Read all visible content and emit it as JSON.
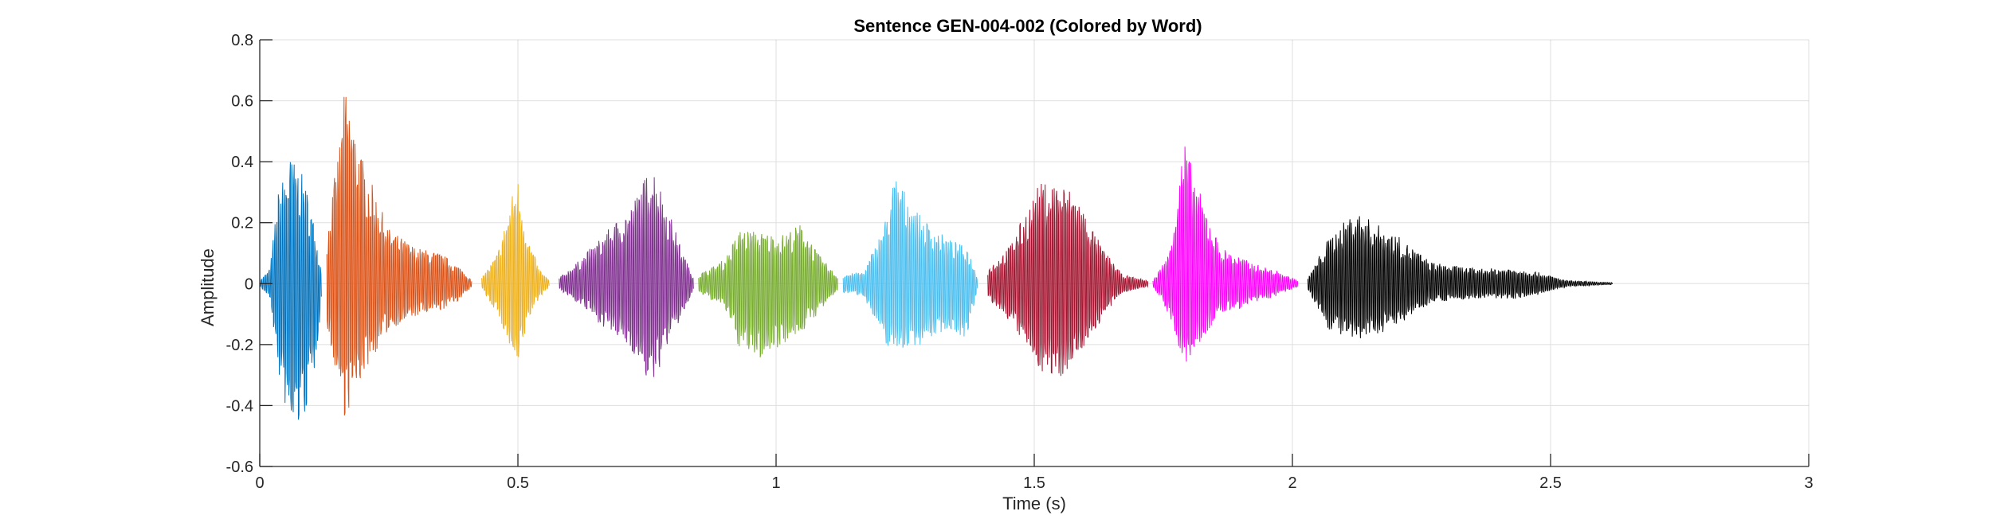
{
  "chart_data": {
    "type": "line",
    "title": "Sentence GEN-004-002 (Colored by Word)",
    "xlabel": "Time (s)",
    "ylabel": "Amplitude",
    "xlim": [
      0,
      3
    ],
    "ylim": [
      -0.6,
      0.8
    ],
    "x_ticks": [
      0,
      0.5,
      1,
      1.5,
      2,
      2.5,
      3
    ],
    "x_tick_labels": [
      "0",
      "0.5",
      "1",
      "1.5",
      "2",
      "2.5",
      "3"
    ],
    "y_ticks": [
      -0.6,
      -0.4,
      -0.2,
      0,
      0.2,
      0.4,
      0.6,
      0.8
    ],
    "y_tick_labels": [
      "-0.6",
      "-0.4",
      "-0.2",
      "0",
      "0.2",
      "0.4",
      "0.6",
      "0.8"
    ],
    "grid": true,
    "series": [
      {
        "color": "#0072BD",
        "start": 0.0,
        "end": 0.12,
        "envelope": [
          [
            0.0,
            0.01,
            -0.01
          ],
          [
            0.02,
            0.05,
            -0.05
          ],
          [
            0.035,
            0.3,
            -0.3
          ],
          [
            0.06,
            0.42,
            -0.5
          ],
          [
            0.085,
            0.35,
            -0.45
          ],
          [
            0.105,
            0.2,
            -0.3
          ],
          [
            0.12,
            0.03,
            -0.04
          ]
        ]
      },
      {
        "color": "#D95319",
        "start": 0.13,
        "end": 0.41,
        "envelope": [
          [
            0.13,
            0.15,
            -0.15
          ],
          [
            0.16,
            0.55,
            -0.4
          ],
          [
            0.165,
            0.65,
            -0.45
          ],
          [
            0.2,
            0.4,
            -0.3
          ],
          [
            0.25,
            0.18,
            -0.15
          ],
          [
            0.3,
            0.12,
            -0.11
          ],
          [
            0.35,
            0.1,
            -0.09
          ],
          [
            0.39,
            0.05,
            -0.05
          ],
          [
            0.41,
            0.01,
            -0.01
          ]
        ]
      },
      {
        "color": "#EDB120",
        "start": 0.43,
        "end": 0.56,
        "envelope": [
          [
            0.43,
            0.02,
            -0.02
          ],
          [
            0.46,
            0.1,
            -0.1
          ],
          [
            0.49,
            0.3,
            -0.25
          ],
          [
            0.5,
            0.35,
            -0.29
          ],
          [
            0.52,
            0.15,
            -0.12
          ],
          [
            0.54,
            0.05,
            -0.05
          ],
          [
            0.56,
            0.01,
            -0.01
          ]
        ]
      },
      {
        "color": "#7E2F8E",
        "start": 0.58,
        "end": 0.84,
        "envelope": [
          [
            0.58,
            0.02,
            -0.02
          ],
          [
            0.62,
            0.08,
            -0.07
          ],
          [
            0.67,
            0.17,
            -0.15
          ],
          [
            0.72,
            0.26,
            -0.22
          ],
          [
            0.76,
            0.4,
            -0.35
          ],
          [
            0.79,
            0.25,
            -0.2
          ],
          [
            0.82,
            0.1,
            -0.1
          ],
          [
            0.84,
            0.02,
            -0.02
          ]
        ]
      },
      {
        "color": "#77AC30",
        "start": 0.85,
        "end": 1.12,
        "envelope": [
          [
            0.85,
            0.03,
            -0.03
          ],
          [
            0.9,
            0.08,
            -0.08
          ],
          [
            0.93,
            0.18,
            -0.22
          ],
          [
            0.97,
            0.17,
            -0.25
          ],
          [
            1.01,
            0.16,
            -0.2
          ],
          [
            1.05,
            0.2,
            -0.16
          ],
          [
            1.08,
            0.1,
            -0.1
          ],
          [
            1.12,
            0.02,
            -0.02
          ]
        ]
      },
      {
        "color": "#4DBEEE",
        "start": 1.13,
        "end": 1.39,
        "envelope": [
          [
            1.13,
            0.03,
            -0.03
          ],
          [
            1.17,
            0.04,
            -0.04
          ],
          [
            1.21,
            0.2,
            -0.2
          ],
          [
            1.23,
            0.36,
            -0.22
          ],
          [
            1.28,
            0.22,
            -0.2
          ],
          [
            1.33,
            0.15,
            -0.15
          ],
          [
            1.37,
            0.12,
            -0.18
          ],
          [
            1.39,
            0.02,
            -0.02
          ]
        ]
      },
      {
        "color": "#A2142F",
        "start": 1.41,
        "end": 1.72,
        "envelope": [
          [
            1.41,
            0.05,
            -0.05
          ],
          [
            1.45,
            0.12,
            -0.12
          ],
          [
            1.51,
            0.33,
            -0.28
          ],
          [
            1.54,
            0.34,
            -0.33
          ],
          [
            1.58,
            0.3,
            -0.25
          ],
          [
            1.63,
            0.12,
            -0.12
          ],
          [
            1.67,
            0.03,
            -0.03
          ],
          [
            1.72,
            0.01,
            -0.01
          ]
        ]
      },
      {
        "color": "#FF00FF",
        "start": 1.73,
        "end": 2.01,
        "envelope": [
          [
            1.73,
            0.01,
            -0.01
          ],
          [
            1.76,
            0.1,
            -0.1
          ],
          [
            1.79,
            0.47,
            -0.28
          ],
          [
            1.82,
            0.3,
            -0.2
          ],
          [
            1.86,
            0.12,
            -0.1
          ],
          [
            1.92,
            0.07,
            -0.07
          ],
          [
            1.97,
            0.04,
            -0.04
          ],
          [
            2.01,
            0.01,
            -0.01
          ]
        ]
      },
      {
        "color": "#000000",
        "start": 2.03,
        "end": 2.62,
        "envelope": [
          [
            2.03,
            0.02,
            -0.02
          ],
          [
            2.07,
            0.15,
            -0.15
          ],
          [
            2.12,
            0.24,
            -0.2
          ],
          [
            2.2,
            0.16,
            -0.14
          ],
          [
            2.27,
            0.07,
            -0.06
          ],
          [
            2.35,
            0.05,
            -0.05
          ],
          [
            2.43,
            0.05,
            -0.05
          ],
          [
            2.47,
            0.04,
            -0.04
          ],
          [
            2.53,
            0.01,
            -0.01
          ],
          [
            2.62,
            0.003,
            -0.003
          ]
        ]
      }
    ]
  }
}
